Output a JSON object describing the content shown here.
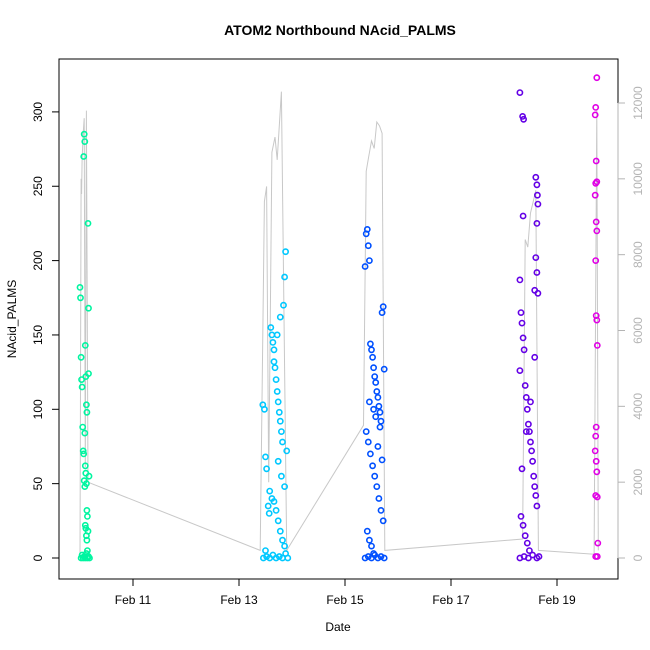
{
  "chart_data": {
    "type": "scatter",
    "title": "ATOM2 Northbound NAcid_PALMS",
    "xlabel": "Date",
    "ylabel": "NAcid_PALMS",
    "x_ticks": [
      "Feb 11",
      "Feb 13",
      "Feb 15",
      "Feb 17",
      "Feb 19"
    ],
    "y_ticks": [
      "0",
      "50",
      "100",
      "150",
      "200",
      "250",
      "300"
    ],
    "y2_ticks": [
      "0",
      "2000",
      "4000",
      "6000",
      "8000",
      "10000",
      "12000"
    ],
    "ylim": [
      0,
      325
    ],
    "y2lim": [
      0,
      12200
    ],
    "xlim_days": [
      9.9,
      19.9
    ],
    "grid": false,
    "secondary_series_color": "#c8c8c8",
    "flights": [
      {
        "date_range": [
          "Feb 10",
          "Feb 10"
        ],
        "color": "#00f5a0",
        "points": [
          {
            "day": 10.0,
            "value": 182
          },
          {
            "day": 10.01,
            "value": 175
          },
          {
            "day": 10.02,
            "value": 135
          },
          {
            "day": 10.03,
            "value": 120
          },
          {
            "day": 10.04,
            "value": 115
          },
          {
            "day": 10.05,
            "value": 88
          },
          {
            "day": 10.06,
            "value": 72
          },
          {
            "day": 10.07,
            "value": 70
          },
          {
            "day": 10.08,
            "value": 52
          },
          {
            "day": 10.09,
            "value": 48
          },
          {
            "day": 10.1,
            "value": 22
          },
          {
            "day": 10.11,
            "value": 20
          },
          {
            "day": 10.12,
            "value": 15
          },
          {
            "day": 10.13,
            "value": 12
          },
          {
            "day": 10.14,
            "value": 5
          },
          {
            "day": 10.02,
            "value": 0
          },
          {
            "day": 10.04,
            "value": 2
          },
          {
            "day": 10.06,
            "value": 0
          },
          {
            "day": 10.08,
            "value": 1
          },
          {
            "day": 10.1,
            "value": 0
          },
          {
            "day": 10.12,
            "value": 3
          },
          {
            "day": 10.14,
            "value": 0
          },
          {
            "day": 10.16,
            "value": 1
          },
          {
            "day": 10.18,
            "value": 0
          },
          {
            "day": 10.08,
            "value": 285
          },
          {
            "day": 10.09,
            "value": 280
          },
          {
            "day": 10.07,
            "value": 270
          },
          {
            "day": 10.15,
            "value": 225
          },
          {
            "day": 10.16,
            "value": 168
          },
          {
            "day": 10.1,
            "value": 143
          },
          {
            "day": 10.11,
            "value": 122
          },
          {
            "day": 10.12,
            "value": 103
          },
          {
            "day": 10.13,
            "value": 98
          },
          {
            "day": 10.09,
            "value": 84
          },
          {
            "day": 10.1,
            "value": 62
          },
          {
            "day": 10.11,
            "value": 57
          },
          {
            "day": 10.12,
            "value": 50
          },
          {
            "day": 10.13,
            "value": 32
          },
          {
            "day": 10.14,
            "value": 28
          },
          {
            "day": 10.15,
            "value": 18
          },
          {
            "day": 10.16,
            "value": 124
          },
          {
            "day": 10.17,
            "value": 55
          }
        ]
      },
      {
        "date_range": [
          "Feb 13",
          "Feb 13"
        ],
        "color": "#00c8ff",
        "points": [
          {
            "day": 13.45,
            "value": 103
          },
          {
            "day": 13.48,
            "value": 100
          },
          {
            "day": 13.5,
            "value": 68
          },
          {
            "day": 13.52,
            "value": 60
          },
          {
            "day": 13.55,
            "value": 35
          },
          {
            "day": 13.57,
            "value": 30
          },
          {
            "day": 13.6,
            "value": 155
          },
          {
            "day": 13.62,
            "value": 150
          },
          {
            "day": 13.64,
            "value": 145
          },
          {
            "day": 13.66,
            "value": 140
          },
          {
            "day": 13.68,
            "value": 128
          },
          {
            "day": 13.7,
            "value": 120
          },
          {
            "day": 13.72,
            "value": 112
          },
          {
            "day": 13.74,
            "value": 105
          },
          {
            "day": 13.76,
            "value": 98
          },
          {
            "day": 13.78,
            "value": 92
          },
          {
            "day": 13.8,
            "value": 85
          },
          {
            "day": 13.82,
            "value": 78
          },
          {
            "day": 13.84,
            "value": 170
          },
          {
            "day": 13.86,
            "value": 189
          },
          {
            "day": 13.88,
            "value": 206
          },
          {
            "day": 13.78,
            "value": 162
          },
          {
            "day": 13.72,
            "value": 150
          },
          {
            "day": 13.66,
            "value": 132
          },
          {
            "day": 13.58,
            "value": 45
          },
          {
            "day": 13.62,
            "value": 40
          },
          {
            "day": 13.66,
            "value": 38
          },
          {
            "day": 13.7,
            "value": 32
          },
          {
            "day": 13.74,
            "value": 25
          },
          {
            "day": 13.78,
            "value": 18
          },
          {
            "day": 13.82,
            "value": 12
          },
          {
            "day": 13.86,
            "value": 8
          },
          {
            "day": 13.5,
            "value": 5
          },
          {
            "day": 13.46,
            "value": 0
          },
          {
            "day": 13.52,
            "value": 1
          },
          {
            "day": 13.58,
            "value": 0
          },
          {
            "day": 13.64,
            "value": 2
          },
          {
            "day": 13.7,
            "value": 0
          },
          {
            "day": 13.76,
            "value": 1
          },
          {
            "day": 13.82,
            "value": 0
          },
          {
            "day": 13.88,
            "value": 3
          },
          {
            "day": 13.92,
            "value": 0
          },
          {
            "day": 13.74,
            "value": 65
          },
          {
            "day": 13.8,
            "value": 55
          },
          {
            "day": 13.86,
            "value": 48
          },
          {
            "day": 13.9,
            "value": 72
          }
        ]
      },
      {
        "date_range": [
          "Feb 15",
          "Feb 15"
        ],
        "color": "#0050ff",
        "points": [
          {
            "day": 15.38,
            "value": 196
          },
          {
            "day": 15.4,
            "value": 218
          },
          {
            "day": 15.42,
            "value": 221
          },
          {
            "day": 15.44,
            "value": 210
          },
          {
            "day": 15.46,
            "value": 200
          },
          {
            "day": 15.48,
            "value": 144
          },
          {
            "day": 15.5,
            "value": 140
          },
          {
            "day": 15.52,
            "value": 135
          },
          {
            "day": 15.54,
            "value": 128
          },
          {
            "day": 15.56,
            "value": 122
          },
          {
            "day": 15.58,
            "value": 118
          },
          {
            "day": 15.6,
            "value": 112
          },
          {
            "day": 15.62,
            "value": 108
          },
          {
            "day": 15.64,
            "value": 102
          },
          {
            "day": 15.66,
            "value": 98
          },
          {
            "day": 15.68,
            "value": 92
          },
          {
            "day": 15.7,
            "value": 165
          },
          {
            "day": 15.72,
            "value": 169
          },
          {
            "day": 15.74,
            "value": 127
          },
          {
            "day": 15.4,
            "value": 85
          },
          {
            "day": 15.44,
            "value": 78
          },
          {
            "day": 15.48,
            "value": 70
          },
          {
            "day": 15.52,
            "value": 62
          },
          {
            "day": 15.56,
            "value": 55
          },
          {
            "day": 15.6,
            "value": 48
          },
          {
            "day": 15.64,
            "value": 40
          },
          {
            "day": 15.68,
            "value": 32
          },
          {
            "day": 15.72,
            "value": 25
          },
          {
            "day": 15.42,
            "value": 18
          },
          {
            "day": 15.46,
            "value": 12
          },
          {
            "day": 15.5,
            "value": 8
          },
          {
            "day": 15.54,
            "value": 3
          },
          {
            "day": 15.38,
            "value": 0
          },
          {
            "day": 15.44,
            "value": 1
          },
          {
            "day": 15.5,
            "value": 0
          },
          {
            "day": 15.56,
            "value": 2
          },
          {
            "day": 15.62,
            "value": 0
          },
          {
            "day": 15.68,
            "value": 1
          },
          {
            "day": 15.74,
            "value": 0
          },
          {
            "day": 15.58,
            "value": 95
          },
          {
            "day": 15.66,
            "value": 88
          },
          {
            "day": 15.7,
            "value": 66
          },
          {
            "day": 15.46,
            "value": 105
          },
          {
            "day": 15.54,
            "value": 100
          },
          {
            "day": 15.62,
            "value": 75
          }
        ]
      },
      {
        "date_range": [
          "Feb 18",
          "Feb 18"
        ],
        "color": "#6400e6",
        "points": [
          {
            "day": 18.3,
            "value": 313
          },
          {
            "day": 18.35,
            "value": 297
          },
          {
            "day": 18.37,
            "value": 295
          },
          {
            "day": 18.6,
            "value": 256
          },
          {
            "day": 18.62,
            "value": 251
          },
          {
            "day": 18.63,
            "value": 244
          },
          {
            "day": 18.64,
            "value": 238
          },
          {
            "day": 18.36,
            "value": 230
          },
          {
            "day": 18.62,
            "value": 225
          },
          {
            "day": 18.6,
            "value": 202
          },
          {
            "day": 18.62,
            "value": 192
          },
          {
            "day": 18.58,
            "value": 180
          },
          {
            "day": 18.3,
            "value": 187
          },
          {
            "day": 18.32,
            "value": 165
          },
          {
            "day": 18.34,
            "value": 158
          },
          {
            "day": 18.36,
            "value": 148
          },
          {
            "day": 18.38,
            "value": 140
          },
          {
            "day": 18.3,
            "value": 126
          },
          {
            "day": 18.4,
            "value": 116
          },
          {
            "day": 18.42,
            "value": 108
          },
          {
            "day": 18.44,
            "value": 100
          },
          {
            "day": 18.46,
            "value": 90
          },
          {
            "day": 18.48,
            "value": 85
          },
          {
            "day": 18.5,
            "value": 78
          },
          {
            "day": 18.52,
            "value": 72
          },
          {
            "day": 18.54,
            "value": 65
          },
          {
            "day": 18.56,
            "value": 55
          },
          {
            "day": 18.58,
            "value": 48
          },
          {
            "day": 18.6,
            "value": 42
          },
          {
            "day": 18.62,
            "value": 35
          },
          {
            "day": 18.32,
            "value": 28
          },
          {
            "day": 18.36,
            "value": 22
          },
          {
            "day": 18.4,
            "value": 15
          },
          {
            "day": 18.44,
            "value": 10
          },
          {
            "day": 18.48,
            "value": 5
          },
          {
            "day": 18.3,
            "value": 0
          },
          {
            "day": 18.38,
            "value": 1
          },
          {
            "day": 18.46,
            "value": 0
          },
          {
            "day": 18.54,
            "value": 2
          },
          {
            "day": 18.62,
            "value": 0
          },
          {
            "day": 18.66,
            "value": 1
          },
          {
            "day": 18.34,
            "value": 60
          },
          {
            "day": 18.42,
            "value": 85
          },
          {
            "day": 18.5,
            "value": 105
          },
          {
            "day": 18.58,
            "value": 135
          },
          {
            "day": 18.64,
            "value": 178
          }
        ]
      },
      {
        "date_range": [
          "Feb 19",
          "Feb 19"
        ],
        "color": "#e100e6",
        "points": [
          {
            "day": 19.75,
            "value": 323
          },
          {
            "day": 19.73,
            "value": 303
          },
          {
            "day": 19.72,
            "value": 298
          },
          {
            "day": 19.74,
            "value": 267
          },
          {
            "day": 19.75,
            "value": 253
          },
          {
            "day": 19.73,
            "value": 252
          },
          {
            "day": 19.72,
            "value": 244
          },
          {
            "day": 19.74,
            "value": 226
          },
          {
            "day": 19.75,
            "value": 220
          },
          {
            "day": 19.73,
            "value": 200
          },
          {
            "day": 19.74,
            "value": 163
          },
          {
            "day": 19.75,
            "value": 160
          },
          {
            "day": 19.76,
            "value": 143
          },
          {
            "day": 19.74,
            "value": 88
          },
          {
            "day": 19.73,
            "value": 82
          },
          {
            "day": 19.72,
            "value": 72
          },
          {
            "day": 19.74,
            "value": 65
          },
          {
            "day": 19.75,
            "value": 58
          },
          {
            "day": 19.73,
            "value": 42
          },
          {
            "day": 19.76,
            "value": 41
          },
          {
            "day": 19.77,
            "value": 10
          },
          {
            "day": 19.73,
            "value": 1
          },
          {
            "day": 19.76,
            "value": 1
          }
        ]
      }
    ],
    "secondary_line": [
      {
        "day": 10.0,
        "value": 0
      },
      {
        "day": 10.02,
        "value": 10000
      },
      {
        "day": 10.03,
        "value": 9600
      },
      {
        "day": 10.04,
        "value": 10500
      },
      {
        "day": 10.06,
        "value": 11200
      },
      {
        "day": 10.08,
        "value": 11600
      },
      {
        "day": 10.1,
        "value": 2400
      },
      {
        "day": 10.12,
        "value": 11800
      },
      {
        "day": 10.15,
        "value": 2000
      },
      {
        "day": 13.4,
        "value": 200
      },
      {
        "day": 13.48,
        "value": 9400
      },
      {
        "day": 13.52,
        "value": 9800
      },
      {
        "day": 13.56,
        "value": 2000
      },
      {
        "day": 13.62,
        "value": 10700
      },
      {
        "day": 13.68,
        "value": 11100
      },
      {
        "day": 13.72,
        "value": 10500
      },
      {
        "day": 13.8,
        "value": 12300
      },
      {
        "day": 13.9,
        "value": 200
      },
      {
        "day": 15.35,
        "value": 3500
      },
      {
        "day": 15.4,
        "value": 10200
      },
      {
        "day": 15.45,
        "value": 10600
      },
      {
        "day": 15.5,
        "value": 11000
      },
      {
        "day": 15.55,
        "value": 10800
      },
      {
        "day": 15.6,
        "value": 11500
      },
      {
        "day": 15.65,
        "value": 11400
      },
      {
        "day": 15.7,
        "value": 11200
      },
      {
        "day": 15.75,
        "value": 200
      },
      {
        "day": 18.35,
        "value": 500
      },
      {
        "day": 18.4,
        "value": 8400
      },
      {
        "day": 18.45,
        "value": 8200
      },
      {
        "day": 18.5,
        "value": 9100
      },
      {
        "day": 18.55,
        "value": 9400
      },
      {
        "day": 18.6,
        "value": 9700
      },
      {
        "day": 18.65,
        "value": 200
      },
      {
        "day": 19.7,
        "value": 100
      },
      {
        "day": 19.75,
        "value": 11800
      },
      {
        "day": 19.78,
        "value": 200
      }
    ]
  }
}
